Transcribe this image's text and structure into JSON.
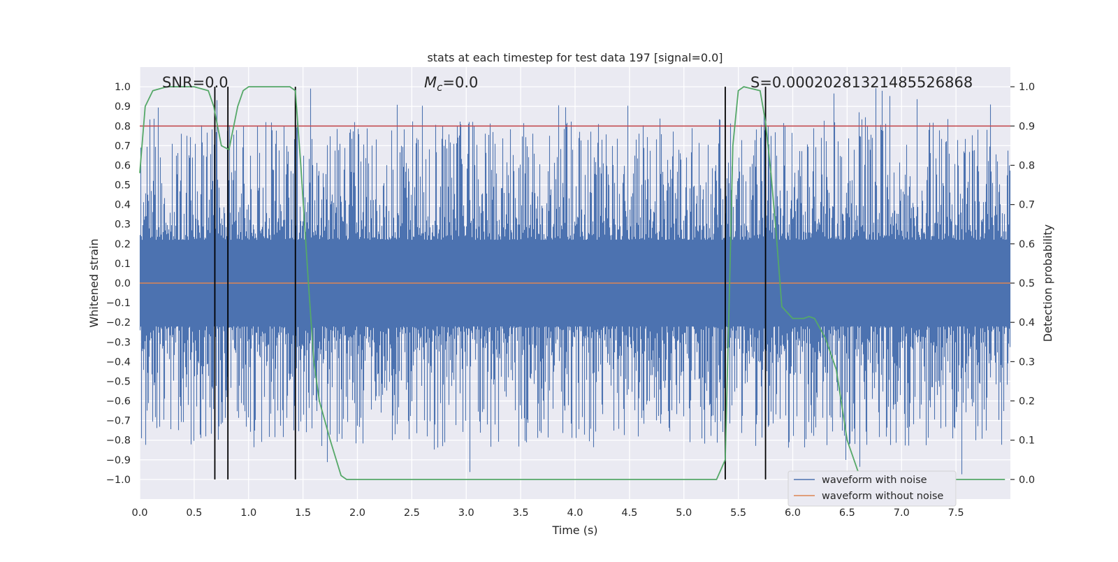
{
  "chart_data": {
    "type": "line",
    "title": "stats at each timestep for test data 197 [signal=0.0]",
    "xlabel": "Time (s)",
    "ylabel_left": "Whitened strain",
    "ylabel_right": "Detection probability",
    "xlim": [
      0.0,
      8.0
    ],
    "ylim_left": [
      -1.1,
      1.1
    ],
    "ylim_right": [
      -0.05,
      1.05
    ],
    "xticks": [
      0.0,
      0.5,
      1.0,
      1.5,
      2.0,
      2.5,
      3.0,
      3.5,
      4.0,
      4.5,
      5.0,
      5.5,
      6.0,
      6.5,
      7.0,
      7.5
    ],
    "xtick_labels": [
      "0.0",
      "0.5",
      "1.0",
      "1.5",
      "2.0",
      "2.5",
      "3.0",
      "3.5",
      "4.0",
      "4.5",
      "5.0",
      "5.5",
      "6.0",
      "6.5",
      "7.0",
      "7.5"
    ],
    "yticks_left": [
      1.0,
      0.9,
      0.8,
      0.7,
      0.6,
      0.5,
      0.4,
      0.3,
      0.2,
      0.1,
      0.0,
      -0.1,
      -0.2,
      -0.3,
      -0.4,
      -0.5,
      -0.6,
      -0.7,
      -0.8,
      -0.9,
      -1.0
    ],
    "ytick_labels_left": [
      "1.0",
      "0.9",
      "0.8",
      "0.7",
      "0.6",
      "0.5",
      "0.4",
      "0.3",
      "0.2",
      "0.1",
      "0.0",
      "−0.1",
      "−0.2",
      "−0.3",
      "−0.4",
      "−0.5",
      "−0.6",
      "−0.7",
      "−0.8",
      "−0.9",
      "−1.0"
    ],
    "yticks_right": [
      1.0,
      0.9,
      0.8,
      0.7,
      0.6,
      0.5,
      0.4,
      0.3,
      0.2,
      0.1,
      0.0
    ],
    "ytick_labels_right": [
      "1.0",
      "0.9",
      "0.8",
      "0.7",
      "0.6",
      "0.5",
      "0.4",
      "0.3",
      "0.2",
      "0.1",
      "0.0"
    ],
    "grid": true,
    "legend_position": "lower-right",
    "annotations": {
      "snr": "SNR=0.0",
      "mc": "M_c=0.0",
      "s": "S=0.00020281321485526868"
    },
    "noisy_waveform": {
      "name": "waveform with noise",
      "color": "#4c72b0",
      "dense_band": [
        -0.22,
        0.22
      ],
      "envelope_max": 1.0,
      "envelope_min": -1.0
    },
    "clean_waveform": {
      "name": "waveform without noise",
      "color": "#dd8452",
      "value": 0.0
    },
    "threshold": {
      "value": 0.8,
      "color": "#c44e52"
    },
    "detection_probability": {
      "color": "#55a868",
      "x": [
        0.0,
        0.05,
        0.12,
        0.25,
        0.5,
        0.63,
        0.68,
        0.75,
        0.82,
        0.9,
        0.95,
        1.0,
        1.2,
        1.38,
        1.43,
        1.48,
        1.55,
        1.6,
        1.65,
        1.75,
        1.85,
        1.9,
        2.0,
        2.4,
        2.5,
        3.0,
        4.0,
        5.0,
        5.3,
        5.38,
        5.42,
        5.45,
        5.5,
        5.55,
        5.7,
        5.75,
        5.8,
        5.85,
        5.9,
        6.0,
        6.1,
        6.15,
        6.2,
        6.3,
        6.4,
        6.5,
        6.6,
        6.7,
        7.0,
        7.95
      ],
      "y": [
        0.78,
        0.95,
        0.99,
        1.0,
        1.0,
        0.99,
        0.95,
        0.85,
        0.84,
        0.95,
        0.99,
        1.0,
        1.0,
        1.0,
        0.99,
        0.8,
        0.5,
        0.3,
        0.2,
        0.1,
        0.01,
        0.0,
        0.0,
        0.0,
        0.0,
        0.0,
        0.0,
        0.0,
        0.0,
        0.05,
        0.5,
        0.85,
        0.99,
        1.0,
        0.99,
        0.91,
        0.78,
        0.62,
        0.44,
        0.41,
        0.41,
        0.415,
        0.41,
        0.36,
        0.28,
        0.1,
        0.02,
        0.0,
        0.0,
        0.0
      ]
    },
    "vertical_lines": [
      0.69,
      0.81,
      1.43,
      5.38,
      5.75
    ]
  }
}
